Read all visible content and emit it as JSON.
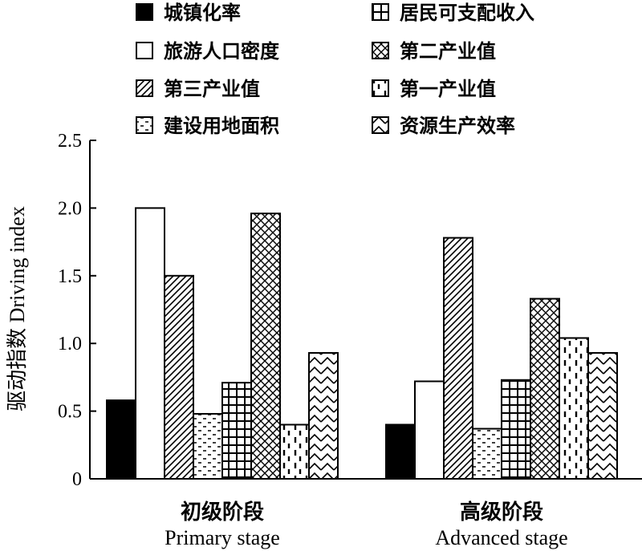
{
  "chart_data": {
    "type": "bar",
    "ylabel": "驱动指数 Driving index",
    "ylim": [
      0,
      2.5
    ],
    "yticks": [
      "0",
      "0.5",
      "1.0",
      "1.5",
      "2.0",
      "2.5"
    ],
    "grid": false,
    "legend_position": "top",
    "categories": [
      {
        "zh": "初级阶段",
        "en": "Primary stage"
      },
      {
        "zh": "高级阶段",
        "en": "Advanced stage"
      }
    ],
    "series": [
      {
        "name": "城镇化率",
        "pattern": "solid",
        "values": [
          0.58,
          0.4
        ]
      },
      {
        "name": "旅游人口密度",
        "pattern": "empty",
        "values": [
          2.0,
          0.72
        ]
      },
      {
        "name": "第三产业值",
        "pattern": "diagonal",
        "values": [
          1.5,
          1.78
        ]
      },
      {
        "name": "建设用地面积",
        "pattern": "dashes",
        "values": [
          0.48,
          0.37
        ]
      },
      {
        "name": "居民可支配收入",
        "pattern": "grid",
        "values": [
          0.71,
          0.73
        ]
      },
      {
        "name": "第二产业值",
        "pattern": "crosshatch",
        "values": [
          1.96,
          1.33
        ]
      },
      {
        "name": "第一产业值",
        "pattern": "vertical-dashes",
        "values": [
          0.4,
          1.04
        ]
      },
      {
        "name": "资源生产效率",
        "pattern": "zigzag",
        "values": [
          0.93,
          0.93
        ]
      }
    ],
    "legend_order": [
      [
        "城镇化率",
        "居民可支配收入"
      ],
      [
        "旅游人口密度",
        "第二产业值"
      ],
      [
        "第三产业值",
        "第一产业值"
      ],
      [
        "建设用地面积",
        "资源生产效率"
      ]
    ]
  }
}
